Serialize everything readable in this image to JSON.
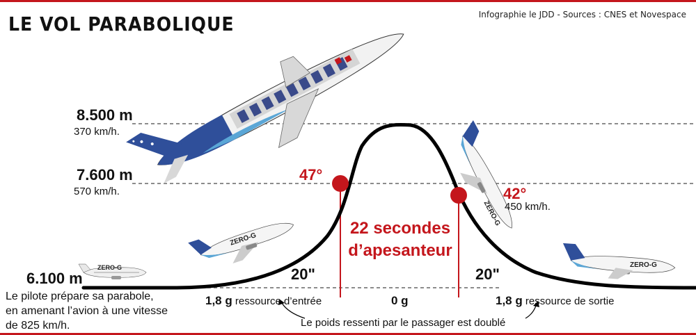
{
  "title": "LE VOL PARABOLIQUE",
  "source": "Infographie le JDD - Sources : CNES et Novespace",
  "levels": {
    "top": {
      "altitude": "8.500 m",
      "speed": "370 km/h."
    },
    "mid": {
      "altitude": "7.600 m",
      "speed": "570 km/h."
    },
    "base": {
      "altitude": "6.100 m"
    }
  },
  "angles": {
    "entry": "47°",
    "exit": "42°",
    "exit_speed": "450 km/h."
  },
  "durations": {
    "entry": "20\"",
    "exit": "20\""
  },
  "weightless": {
    "line1": "22 secondes",
    "line2": "d’apesanteur"
  },
  "g_loads": {
    "entry_value": "1,8 g",
    "entry_label": "ressource d’entrée",
    "zero": "0 g",
    "exit_value": "1,8 g",
    "exit_label": "ressource de sortie"
  },
  "footnote": "Le poids ressenti par le passager est doublé",
  "pilot_note": {
    "line1": "Le pilote prépare sa parabole,",
    "line2": "en amenant l’avion à une vitesse",
    "line3": "de 825 km/h."
  },
  "aircraft_label": "ZERO-G",
  "colors": {
    "accent": "#c4161c",
    "livery_blue": "#2f4f9a",
    "livery_light": "#5aa6d6"
  }
}
